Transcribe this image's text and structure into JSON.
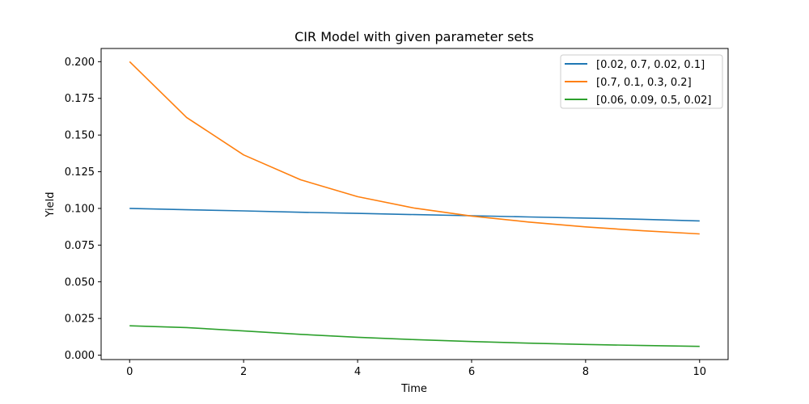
{
  "chart_data": {
    "type": "line",
    "title": "CIR Model with given parameter sets",
    "xlabel": "Time",
    "ylabel": "Yield",
    "xlim": [
      -0.5,
      10.5
    ],
    "ylim": [
      -0.003,
      0.209
    ],
    "xticks": [
      0,
      2,
      4,
      6,
      8,
      10
    ],
    "xtick_labels": [
      "0",
      "2",
      "4",
      "6",
      "8",
      "10"
    ],
    "yticks": [
      0.0,
      0.025,
      0.05,
      0.075,
      0.1,
      0.125,
      0.15,
      0.175,
      0.2
    ],
    "ytick_labels": [
      "0.000",
      "0.025",
      "0.050",
      "0.075",
      "0.100",
      "0.125",
      "0.150",
      "0.175",
      "0.200"
    ],
    "grid": false,
    "legend_position": "top-right",
    "x": [
      0,
      1,
      2,
      3,
      4,
      5,
      6,
      7,
      8,
      9,
      10
    ],
    "series": [
      {
        "name": "[0.02, 0.7, 0.02, 0.1]",
        "color": "#1f77b4",
        "values": [
          0.1,
          0.0991,
          0.0983,
          0.0974,
          0.0966,
          0.0958,
          0.095,
          0.0942,
          0.0934,
          0.0926,
          0.0915
        ]
      },
      {
        "name": "[0.7, 0.1, 0.3, 0.2]",
        "color": "#ff7f0e",
        "values": [
          0.2,
          0.162,
          0.1365,
          0.1195,
          0.108,
          0.1002,
          0.0948,
          0.0907,
          0.0874,
          0.0848,
          0.0826
        ]
      },
      {
        "name": "[0.06, 0.09, 0.5, 0.02]",
        "color": "#2ca02c",
        "values": [
          0.02,
          0.0188,
          0.0165,
          0.0142,
          0.0122,
          0.0106,
          0.0093,
          0.0082,
          0.0073,
          0.0066,
          0.006
        ]
      }
    ]
  }
}
